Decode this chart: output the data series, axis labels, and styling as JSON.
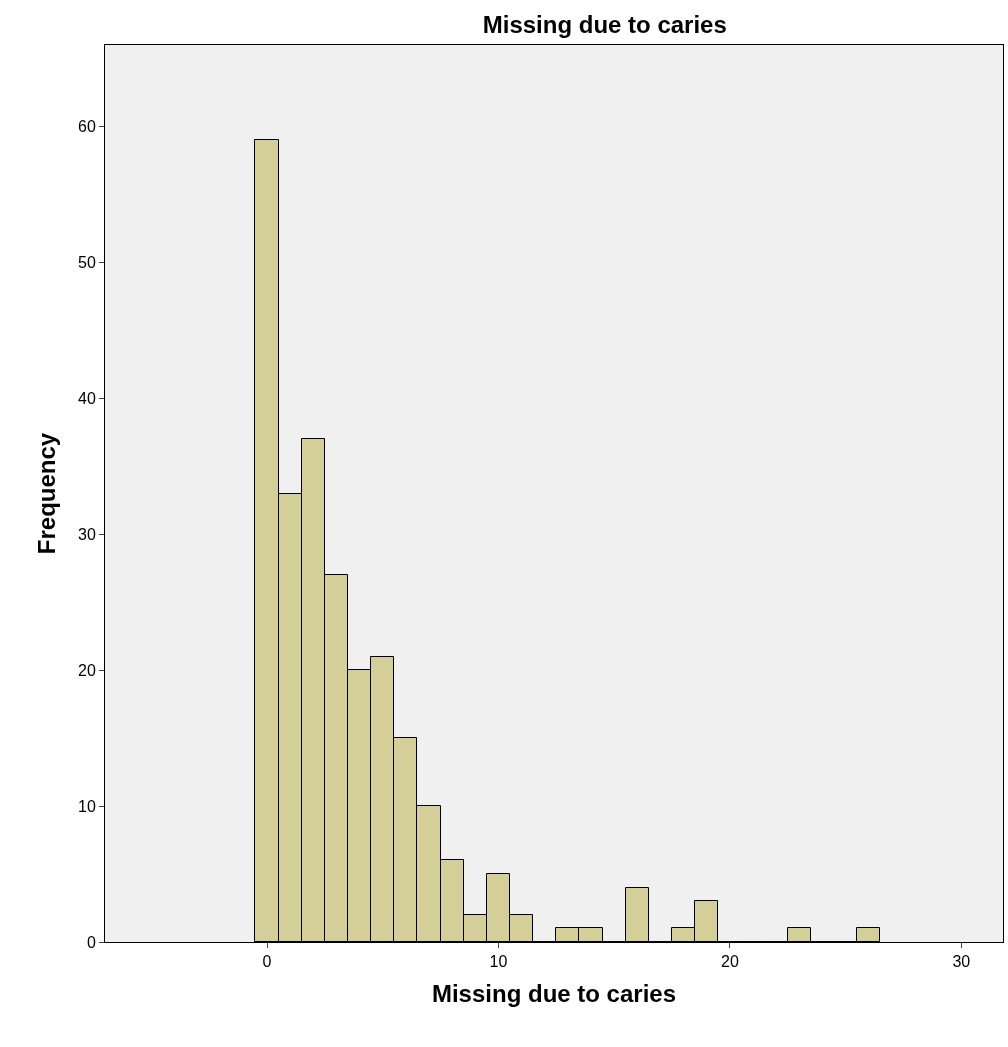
{
  "chart_data": {
    "type": "histogram",
    "title": "Missing due to caries",
    "xlabel": "Missing due to caries",
    "ylabel": "Frequency",
    "bins": [
      -0.5,
      0.5,
      1.5,
      2.5,
      3.5,
      4.5,
      5.5,
      6.5,
      7.5,
      8.5,
      9.5,
      10.5,
      11.5,
      12.5,
      13.5,
      14.5,
      15.5,
      16.5,
      17.5,
      18.5,
      19.5,
      20.5,
      21.5,
      22.5,
      23.5,
      24.5,
      25.5,
      26.5
    ],
    "values": [
      59,
      33,
      37,
      27,
      20,
      21,
      15,
      10,
      6,
      2,
      5,
      2,
      0,
      1,
      1,
      0,
      4,
      0,
      1,
      3,
      0,
      0,
      0,
      1,
      0,
      0,
      1
    ],
    "color": "#d4cf98",
    "xlim": [
      -7,
      31.8
    ],
    "xticks": [
      0,
      10,
      20,
      30
    ],
    "ylim": [
      0,
      66
    ],
    "yticks": [
      0,
      10,
      20,
      30,
      40,
      50,
      60
    ],
    "grid": false
  }
}
